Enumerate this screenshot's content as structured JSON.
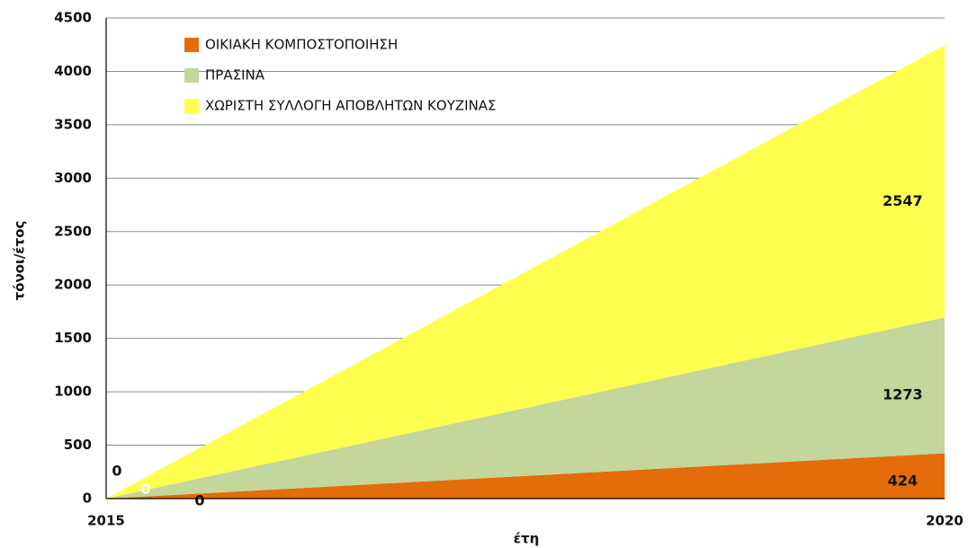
{
  "chart_data": {
    "type": "stacked_area",
    "categories": [
      "2015",
      "2020"
    ],
    "x_label": "έτη",
    "y_label": "τόνοι/έτος",
    "ylim": [
      0,
      4500
    ],
    "yticks": [
      0,
      500,
      1000,
      1500,
      2000,
      2500,
      3000,
      3500,
      4000,
      4500
    ],
    "grid": true,
    "legend": "top-left",
    "series": [
      {
        "name": "ΟΙΚΙΑΚΗ ΚΟΜΠΟΣΤΟΠΟΙΗΣΗ",
        "color": "#e46c0a",
        "values": [
          0,
          424
        ]
      },
      {
        "name": "ΠΡΑΣΙΝΑ",
        "color": "#c3d69b",
        "values": [
          0,
          1273
        ]
      },
      {
        "name": "ΧΩΡΙΣΤΗ ΣΥΛΛΟΓΗ ΑΠΟΒΛΗΤΩΝ ΚΟΥΖΙΝΑΣ",
        "color": "#ffff4f",
        "values": [
          0,
          2547
        ]
      }
    ]
  }
}
